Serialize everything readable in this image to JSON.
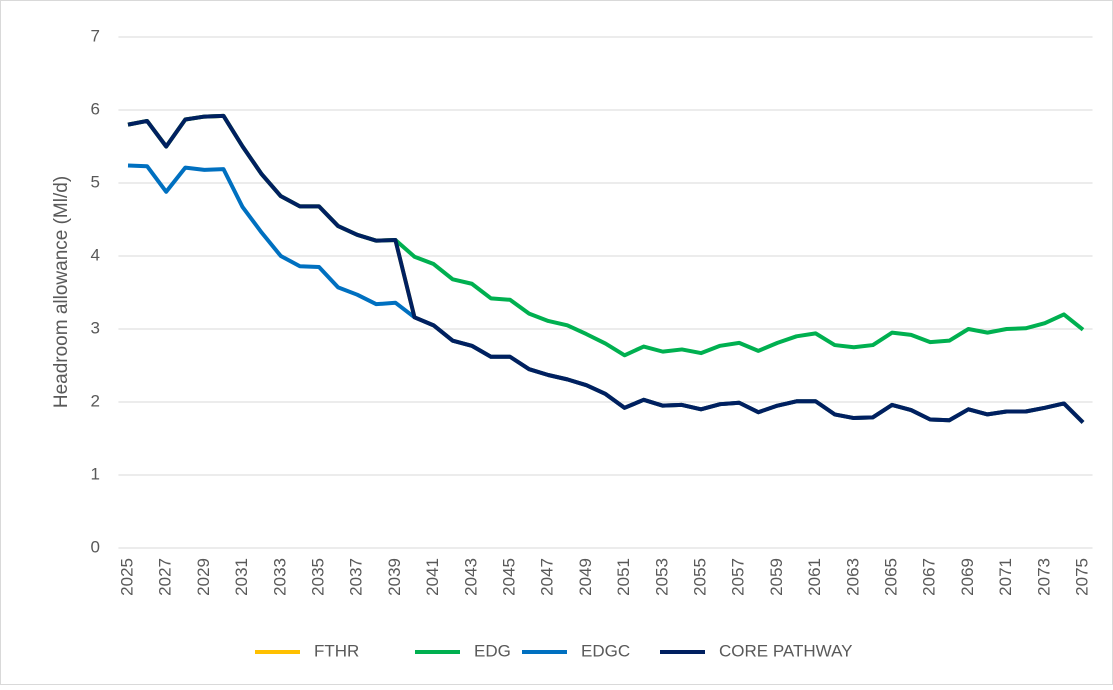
{
  "chart_data": {
    "type": "line",
    "y_label": "Headroom allowance (Ml/d)",
    "categories": [
      "2025",
      null,
      "2027",
      null,
      "2029",
      null,
      "2031",
      null,
      "2033",
      null,
      "2035",
      null,
      "2037",
      null,
      "2039",
      null,
      "2041",
      null,
      "2043",
      null,
      "2045",
      null,
      "2047",
      null,
      "2049",
      null,
      "2051",
      null,
      "2053",
      null,
      "2055",
      null,
      "2057",
      null,
      "2059",
      null,
      "2061",
      null,
      "2063",
      null,
      "2065",
      null,
      "2067",
      null,
      "2069",
      null,
      "2071",
      null,
      "2073",
      null,
      "2075"
    ],
    "series": [
      {
        "name": "FTHR",
        "color": "#ffc000",
        "values": [
          5.8,
          5.85,
          5.5,
          5.87,
          5.91,
          5.92,
          5.5,
          5.12,
          4.82,
          4.68,
          4.68,
          4.41,
          4.29,
          4.21,
          4.22,
          3.16,
          3.05,
          2.84,
          2.77,
          2.62,
          2.62,
          2.45,
          2.37,
          2.31,
          2.23,
          2.11,
          1.92,
          2.03,
          1.95,
          1.96,
          1.9,
          1.97,
          1.99,
          1.86,
          1.95,
          2.01,
          2.01,
          1.83,
          1.78,
          1.79,
          1.96,
          1.89,
          1.76,
          1.75,
          1.9,
          1.83,
          1.87,
          1.87,
          1.92,
          1.98,
          1.72
        ]
      },
      {
        "name": "EDG",
        "color": "#00b050",
        "values": [
          5.8,
          5.85,
          5.5,
          5.87,
          5.91,
          5.92,
          5.5,
          5.12,
          4.82,
          4.68,
          4.68,
          4.41,
          4.29,
          4.21,
          4.22,
          3.99,
          3.89,
          3.68,
          3.62,
          3.42,
          3.4,
          3.21,
          3.11,
          3.05,
          2.93,
          2.8,
          2.64,
          2.76,
          2.69,
          2.72,
          2.67,
          2.77,
          2.81,
          2.7,
          2.81,
          2.9,
          2.94,
          2.78,
          2.75,
          2.78,
          2.95,
          2.92,
          2.82,
          2.84,
          3.0,
          2.95,
          3.0,
          3.01,
          3.08,
          3.2,
          2.99
        ]
      },
      {
        "name": "EDGC",
        "color": "#0070c0",
        "values": [
          5.24,
          5.23,
          4.88,
          5.21,
          5.18,
          5.19,
          4.67,
          4.32,
          4.0,
          3.86,
          3.85,
          3.57,
          3.47,
          3.34,
          3.36,
          3.16,
          3.05,
          2.84,
          2.77,
          2.62,
          2.62,
          2.45,
          2.37,
          2.31,
          2.23,
          2.11,
          1.92,
          2.03,
          1.95,
          1.96,
          1.9,
          1.97,
          1.99,
          1.86,
          1.95,
          2.01,
          2.01,
          1.83,
          1.78,
          1.79,
          1.96,
          1.89,
          1.76,
          1.75,
          1.9,
          1.83,
          1.87,
          1.87,
          1.92,
          1.98,
          1.72
        ]
      },
      {
        "name": "CORE PATHWAY",
        "color": "#002060",
        "values": [
          5.8,
          5.85,
          5.5,
          5.87,
          5.91,
          5.92,
          5.5,
          5.12,
          4.82,
          4.68,
          4.68,
          4.41,
          4.29,
          4.21,
          4.22,
          3.16,
          3.05,
          2.84,
          2.77,
          2.62,
          2.62,
          2.45,
          2.37,
          2.31,
          2.23,
          2.11,
          1.92,
          2.03,
          1.95,
          1.96,
          1.9,
          1.97,
          1.99,
          1.86,
          1.95,
          2.01,
          2.01,
          1.83,
          1.78,
          1.79,
          1.96,
          1.89,
          1.76,
          1.75,
          1.9,
          1.83,
          1.87,
          1.87,
          1.92,
          1.98,
          1.72
        ]
      }
    ],
    "ylim": [
      0,
      7
    ],
    "yticks": [
      0,
      1,
      2,
      3,
      4,
      5,
      6,
      7
    ],
    "grid": true,
    "legend": "bottom"
  }
}
